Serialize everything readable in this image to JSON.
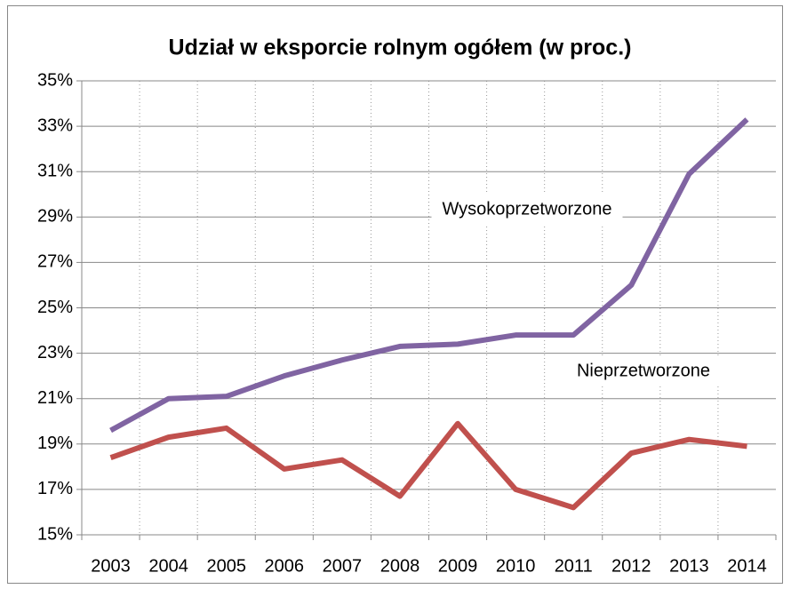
{
  "chart_data": {
    "type": "line",
    "title": "Udział w eksporcie rolnym ogółem (w proc.)",
    "categories": [
      "2003",
      "2004",
      "2005",
      "2006",
      "2007",
      "2008",
      "2009",
      "2010",
      "2011",
      "2012",
      "2013",
      "2014"
    ],
    "series": [
      {
        "name": "Wysokoprzetworzone",
        "color": "#8064a2",
        "values": [
          19.6,
          21.0,
          21.1,
          22.0,
          22.7,
          23.3,
          23.4,
          23.8,
          23.8,
          26.0,
          30.9,
          33.3
        ]
      },
      {
        "name": "Nieprzetworzone",
        "color": "#c0504d",
        "values": [
          18.4,
          19.3,
          19.7,
          17.9,
          18.3,
          16.7,
          19.9,
          17.0,
          16.2,
          18.6,
          19.2,
          18.9
        ]
      }
    ],
    "ylim": [
      15,
      35
    ],
    "yticks": [
      {
        "value": 15,
        "label": "15%"
      },
      {
        "value": 17,
        "label": "17%"
      },
      {
        "value": 19,
        "label": "19%"
      },
      {
        "value": 21,
        "label": "21%"
      },
      {
        "value": 23,
        "label": "23%"
      },
      {
        "value": 25,
        "label": "25%"
      },
      {
        "value": 27,
        "label": "27%"
      },
      {
        "value": 29,
        "label": "29%"
      },
      {
        "value": 31,
        "label": "31%"
      },
      {
        "value": 33,
        "label": "33%"
      },
      {
        "value": 35,
        "label": "35%"
      }
    ],
    "grid": true
  }
}
